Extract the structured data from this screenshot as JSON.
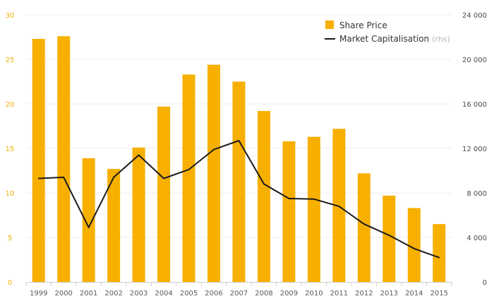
{
  "chart_data": {
    "type": "bar",
    "categories": [
      "1999",
      "2000",
      "2001",
      "2002",
      "2003",
      "2004",
      "2005",
      "2006",
      "2007",
      "2008",
      "2009",
      "2010",
      "2011",
      "2012",
      "2013",
      "2014",
      "2015"
    ],
    "series": [
      {
        "name": "Share Price",
        "type": "bar",
        "axis": "left",
        "color": "#f7b000",
        "values": [
          27.3,
          27.6,
          13.9,
          12.7,
          15.1,
          19.7,
          23.3,
          24.4,
          22.5,
          19.2,
          15.8,
          16.3,
          17.2,
          12.2,
          9.7,
          8.3,
          6.5
        ]
      },
      {
        "name": "Market Capitalisation",
        "name_suffix": "(rhs)",
        "type": "line",
        "axis": "right",
        "color": "#1a1a1a",
        "values": [
          9300,
          9400,
          4900,
          9400,
          11400,
          9300,
          10100,
          11900,
          12700,
          8800,
          7500,
          7450,
          6800,
          5200,
          4200,
          3000,
          2200
        ]
      }
    ],
    "y_left": {
      "min": 0,
      "max": 30,
      "ticks": [
        "0",
        "5",
        "10",
        "15",
        "20",
        "25",
        "30"
      ],
      "color": "#f0b000"
    },
    "y_right": {
      "min": 0,
      "max": 24000,
      "ticks": [
        "0",
        "4 000",
        "8 000",
        "12 000",
        "16 000",
        "20 000",
        "24 000"
      ],
      "color": "#4a4a4a"
    },
    "title": "",
    "xlabel": "",
    "ylabel": "",
    "grid": true,
    "legend": "top-right"
  }
}
